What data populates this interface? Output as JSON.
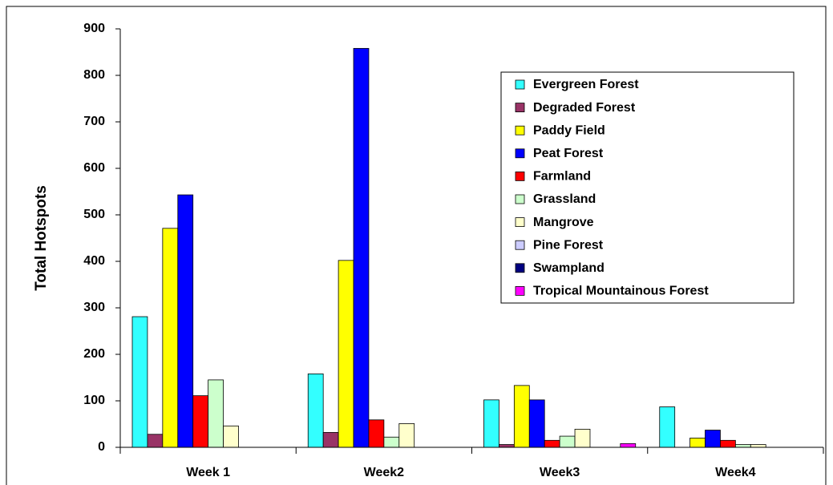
{
  "chart_data": {
    "type": "bar",
    "y_label": "Total Hotspots",
    "categories": [
      "Week 1",
      "Week2",
      "Week3",
      "Week4"
    ],
    "series": [
      {
        "name": "Evergreen Forest",
        "color": "#33ffff",
        "values": [
          281,
          158,
          102,
          87
        ]
      },
      {
        "name": "Degraded Forest",
        "color": "#993366",
        "values": [
          28,
          32,
          6,
          0
        ]
      },
      {
        "name": "Paddy Field",
        "color": "#ffff00",
        "values": [
          471,
          402,
          133,
          20
        ]
      },
      {
        "name": "Peat Forest",
        "color": "#0000ff",
        "values": [
          543,
          858,
          102,
          37
        ]
      },
      {
        "name": "Farmland",
        "color": "#ff0000",
        "values": [
          111,
          59,
          15,
          15
        ]
      },
      {
        "name": "Grassland",
        "color": "#ccffcc",
        "values": [
          145,
          22,
          24,
          6
        ]
      },
      {
        "name": "Mangrove",
        "color": "#ffffcc",
        "values": [
          46,
          51,
          39,
          6
        ]
      },
      {
        "name": "Pine Forest",
        "color": "#ccccff",
        "values": [
          0,
          0,
          0,
          0
        ]
      },
      {
        "name": "Swampland",
        "color": "#000080",
        "values": [
          0,
          0,
          0,
          0
        ]
      },
      {
        "name": "Tropical Mountainous Forest",
        "color": "#ff00ff",
        "values": [
          0,
          0,
          8,
          0
        ]
      }
    ],
    "ylim": [
      0,
      900
    ],
    "yticks": [
      0,
      100,
      200,
      300,
      400,
      500,
      600,
      700,
      800,
      900
    ],
    "grid": false,
    "legend": "upper right"
  }
}
